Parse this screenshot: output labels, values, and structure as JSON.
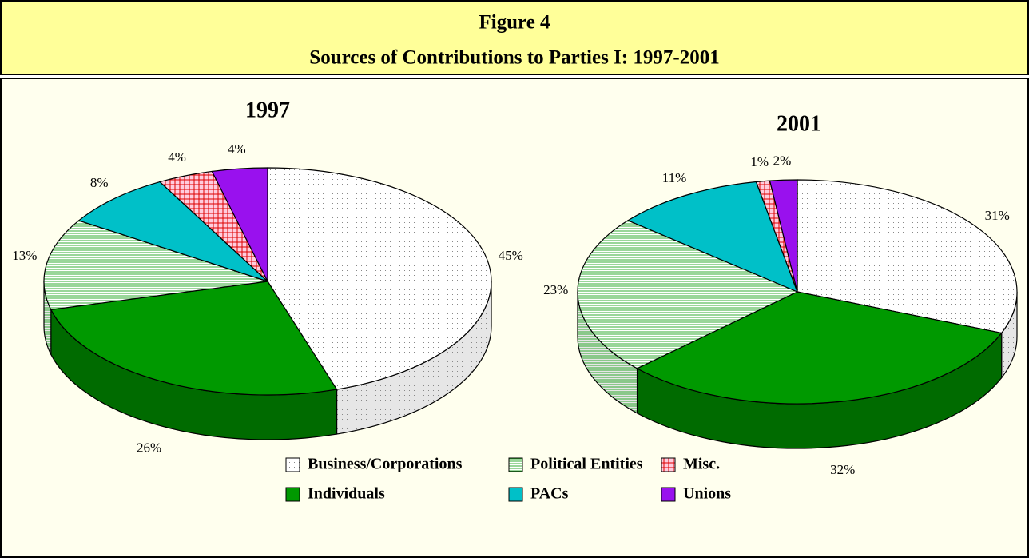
{
  "header": {
    "title": "Figure 4",
    "subtitle": "Sources of Contributions to Parties I: 1997-2001"
  },
  "chart_data": [
    {
      "type": "pie",
      "title": "1997",
      "categories": [
        "Business/Corporations",
        "Individuals",
        "Political Entities",
        "PACs",
        "Misc.",
        "Unions"
      ],
      "values": [
        45,
        26,
        13,
        8,
        4,
        4
      ],
      "value_labels": [
        "45%",
        "26%",
        "13%",
        "8%",
        "4%",
        "4%"
      ],
      "colors": [
        "#ffffff",
        "#009900",
        "#ffffff",
        "#00c0c8",
        "#ffccdd",
        "#9911ee"
      ],
      "patterns": [
        "dots",
        null,
        "hlines",
        null,
        "grid",
        null
      ]
    },
    {
      "type": "pie",
      "title": "2001",
      "categories": [
        "Business/Corporations",
        "Individuals",
        "Political Entities",
        "PACs",
        "Misc.",
        "Unions"
      ],
      "values": [
        31,
        32,
        23,
        11,
        1,
        2
      ],
      "value_labels": [
        "31%",
        "32%",
        "23%",
        "11%",
        "1%",
        "2%"
      ],
      "colors": [
        "#ffffff",
        "#009900",
        "#ffffff",
        "#00c0c8",
        "#ffccdd",
        "#9911ee"
      ],
      "patterns": [
        "dots",
        null,
        "hlines",
        null,
        "grid",
        null
      ]
    }
  ]
}
